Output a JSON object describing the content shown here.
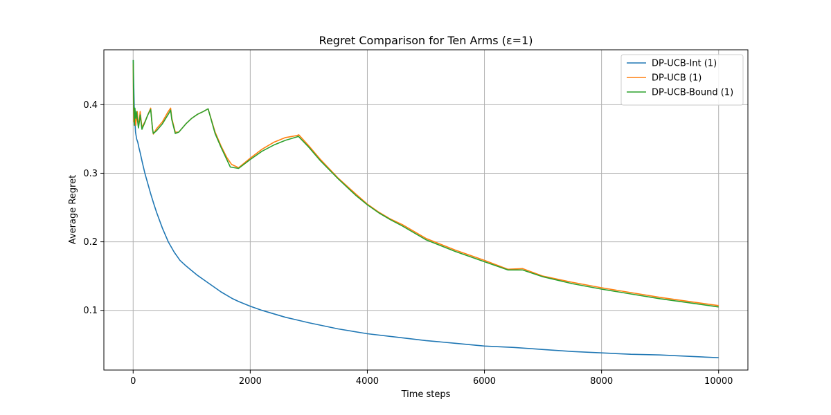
{
  "chart_data": {
    "type": "line",
    "title": "Regret Comparison for Ten Arms (ε=1)",
    "xlabel": "Time steps",
    "ylabel": "Average Regret",
    "xlim": [
      -500,
      10500
    ],
    "ylim": [
      0.013,
      0.48
    ],
    "xticks": [
      0,
      2000,
      4000,
      6000,
      8000,
      10000
    ],
    "yticks": [
      0.1,
      0.2,
      0.3,
      0.4
    ],
    "xtick_labels": [
      "0",
      "2000",
      "4000",
      "6000",
      "8000",
      "10000"
    ],
    "ytick_labels": [
      "0.1",
      "0.2",
      "0.3",
      "0.4"
    ],
    "grid": true,
    "legend_position": "top-right",
    "series": [
      {
        "name": "DP-UCB-Int (1)",
        "color": "#1f77b4",
        "x": [
          1,
          10,
          20,
          40,
          60,
          80,
          100,
          120,
          150,
          200,
          250,
          300,
          350,
          400,
          500,
          600,
          700,
          800,
          900,
          1000,
          1100,
          1200,
          1300,
          1400,
          1500,
          1600,
          1700,
          1800,
          2000,
          2200,
          2400,
          2600,
          2800,
          3000,
          3500,
          4000,
          4500,
          5000,
          5500,
          6000,
          6500,
          7000,
          7500,
          8000,
          8500,
          9000,
          9500,
          10000
        ],
        "y": [
          0.465,
          0.43,
          0.39,
          0.36,
          0.35,
          0.345,
          0.337,
          0.33,
          0.318,
          0.3,
          0.285,
          0.27,
          0.256,
          0.243,
          0.22,
          0.2,
          0.185,
          0.173,
          0.165,
          0.158,
          0.151,
          0.145,
          0.139,
          0.133,
          0.127,
          0.122,
          0.117,
          0.113,
          0.106,
          0.1,
          0.095,
          0.09,
          0.086,
          0.082,
          0.073,
          0.066,
          0.061,
          0.056,
          0.052,
          0.048,
          0.046,
          0.043,
          0.04,
          0.038,
          0.036,
          0.035,
          0.033,
          0.031
        ]
      },
      {
        "name": "DP-UCB (1)",
        "color": "#ff7f0e",
        "x": [
          1,
          5,
          10,
          20,
          30,
          45,
          60,
          70,
          90,
          105,
          120,
          150,
          170,
          200,
          250,
          300,
          330,
          345,
          400,
          500,
          600,
          640,
          660,
          720,
          780,
          900,
          1000,
          1100,
          1200,
          1280,
          1400,
          1500,
          1600,
          1680,
          1800,
          2000,
          2200,
          2400,
          2600,
          2800,
          2830,
          3000,
          3200,
          3500,
          3800,
          4000,
          4200,
          4400,
          4600,
          4800,
          5000,
          5500,
          6000,
          6400,
          6650,
          7000,
          7500,
          8000,
          8500,
          9000,
          9500,
          10000
        ],
        "y": [
          0.46,
          0.41,
          0.375,
          0.38,
          0.39,
          0.37,
          0.385,
          0.39,
          0.37,
          0.377,
          0.39,
          0.366,
          0.37,
          0.375,
          0.385,
          0.395,
          0.365,
          0.357,
          0.365,
          0.375,
          0.39,
          0.395,
          0.38,
          0.36,
          0.36,
          0.372,
          0.38,
          0.386,
          0.39,
          0.394,
          0.36,
          0.34,
          0.323,
          0.313,
          0.308,
          0.322,
          0.335,
          0.345,
          0.352,
          0.355,
          0.356,
          0.34,
          0.32,
          0.293,
          0.27,
          0.255,
          0.243,
          0.233,
          0.225,
          0.215,
          0.205,
          0.188,
          0.173,
          0.16,
          0.161,
          0.15,
          0.141,
          0.133,
          0.126,
          0.119,
          0.113,
          0.107
        ]
      },
      {
        "name": "DP-UCB-Bound (1)",
        "color": "#2ca02c",
        "x": [
          1,
          5,
          10,
          20,
          30,
          45,
          60,
          70,
          90,
          105,
          120,
          150,
          170,
          200,
          250,
          300,
          330,
          345,
          400,
          500,
          600,
          640,
          660,
          720,
          780,
          900,
          1000,
          1100,
          1200,
          1280,
          1400,
          1500,
          1600,
          1660,
          1800,
          2000,
          2200,
          2400,
          2600,
          2800,
          2820,
          3000,
          3200,
          3500,
          3800,
          4000,
          4200,
          4400,
          4600,
          4800,
          5000,
          5500,
          6000,
          6400,
          6650,
          7000,
          7500,
          8000,
          8500,
          9000,
          9500,
          10000
        ],
        "y": [
          0.465,
          0.43,
          0.395,
          0.37,
          0.395,
          0.38,
          0.39,
          0.38,
          0.366,
          0.375,
          0.385,
          0.364,
          0.368,
          0.374,
          0.385,
          0.393,
          0.365,
          0.358,
          0.362,
          0.372,
          0.386,
          0.392,
          0.378,
          0.358,
          0.36,
          0.372,
          0.38,
          0.386,
          0.39,
          0.394,
          0.358,
          0.338,
          0.32,
          0.309,
          0.307,
          0.32,
          0.332,
          0.341,
          0.348,
          0.353,
          0.354,
          0.338,
          0.318,
          0.292,
          0.268,
          0.254,
          0.242,
          0.232,
          0.223,
          0.213,
          0.203,
          0.186,
          0.171,
          0.159,
          0.159,
          0.149,
          0.139,
          0.131,
          0.124,
          0.117,
          0.111,
          0.105
        ]
      }
    ]
  }
}
